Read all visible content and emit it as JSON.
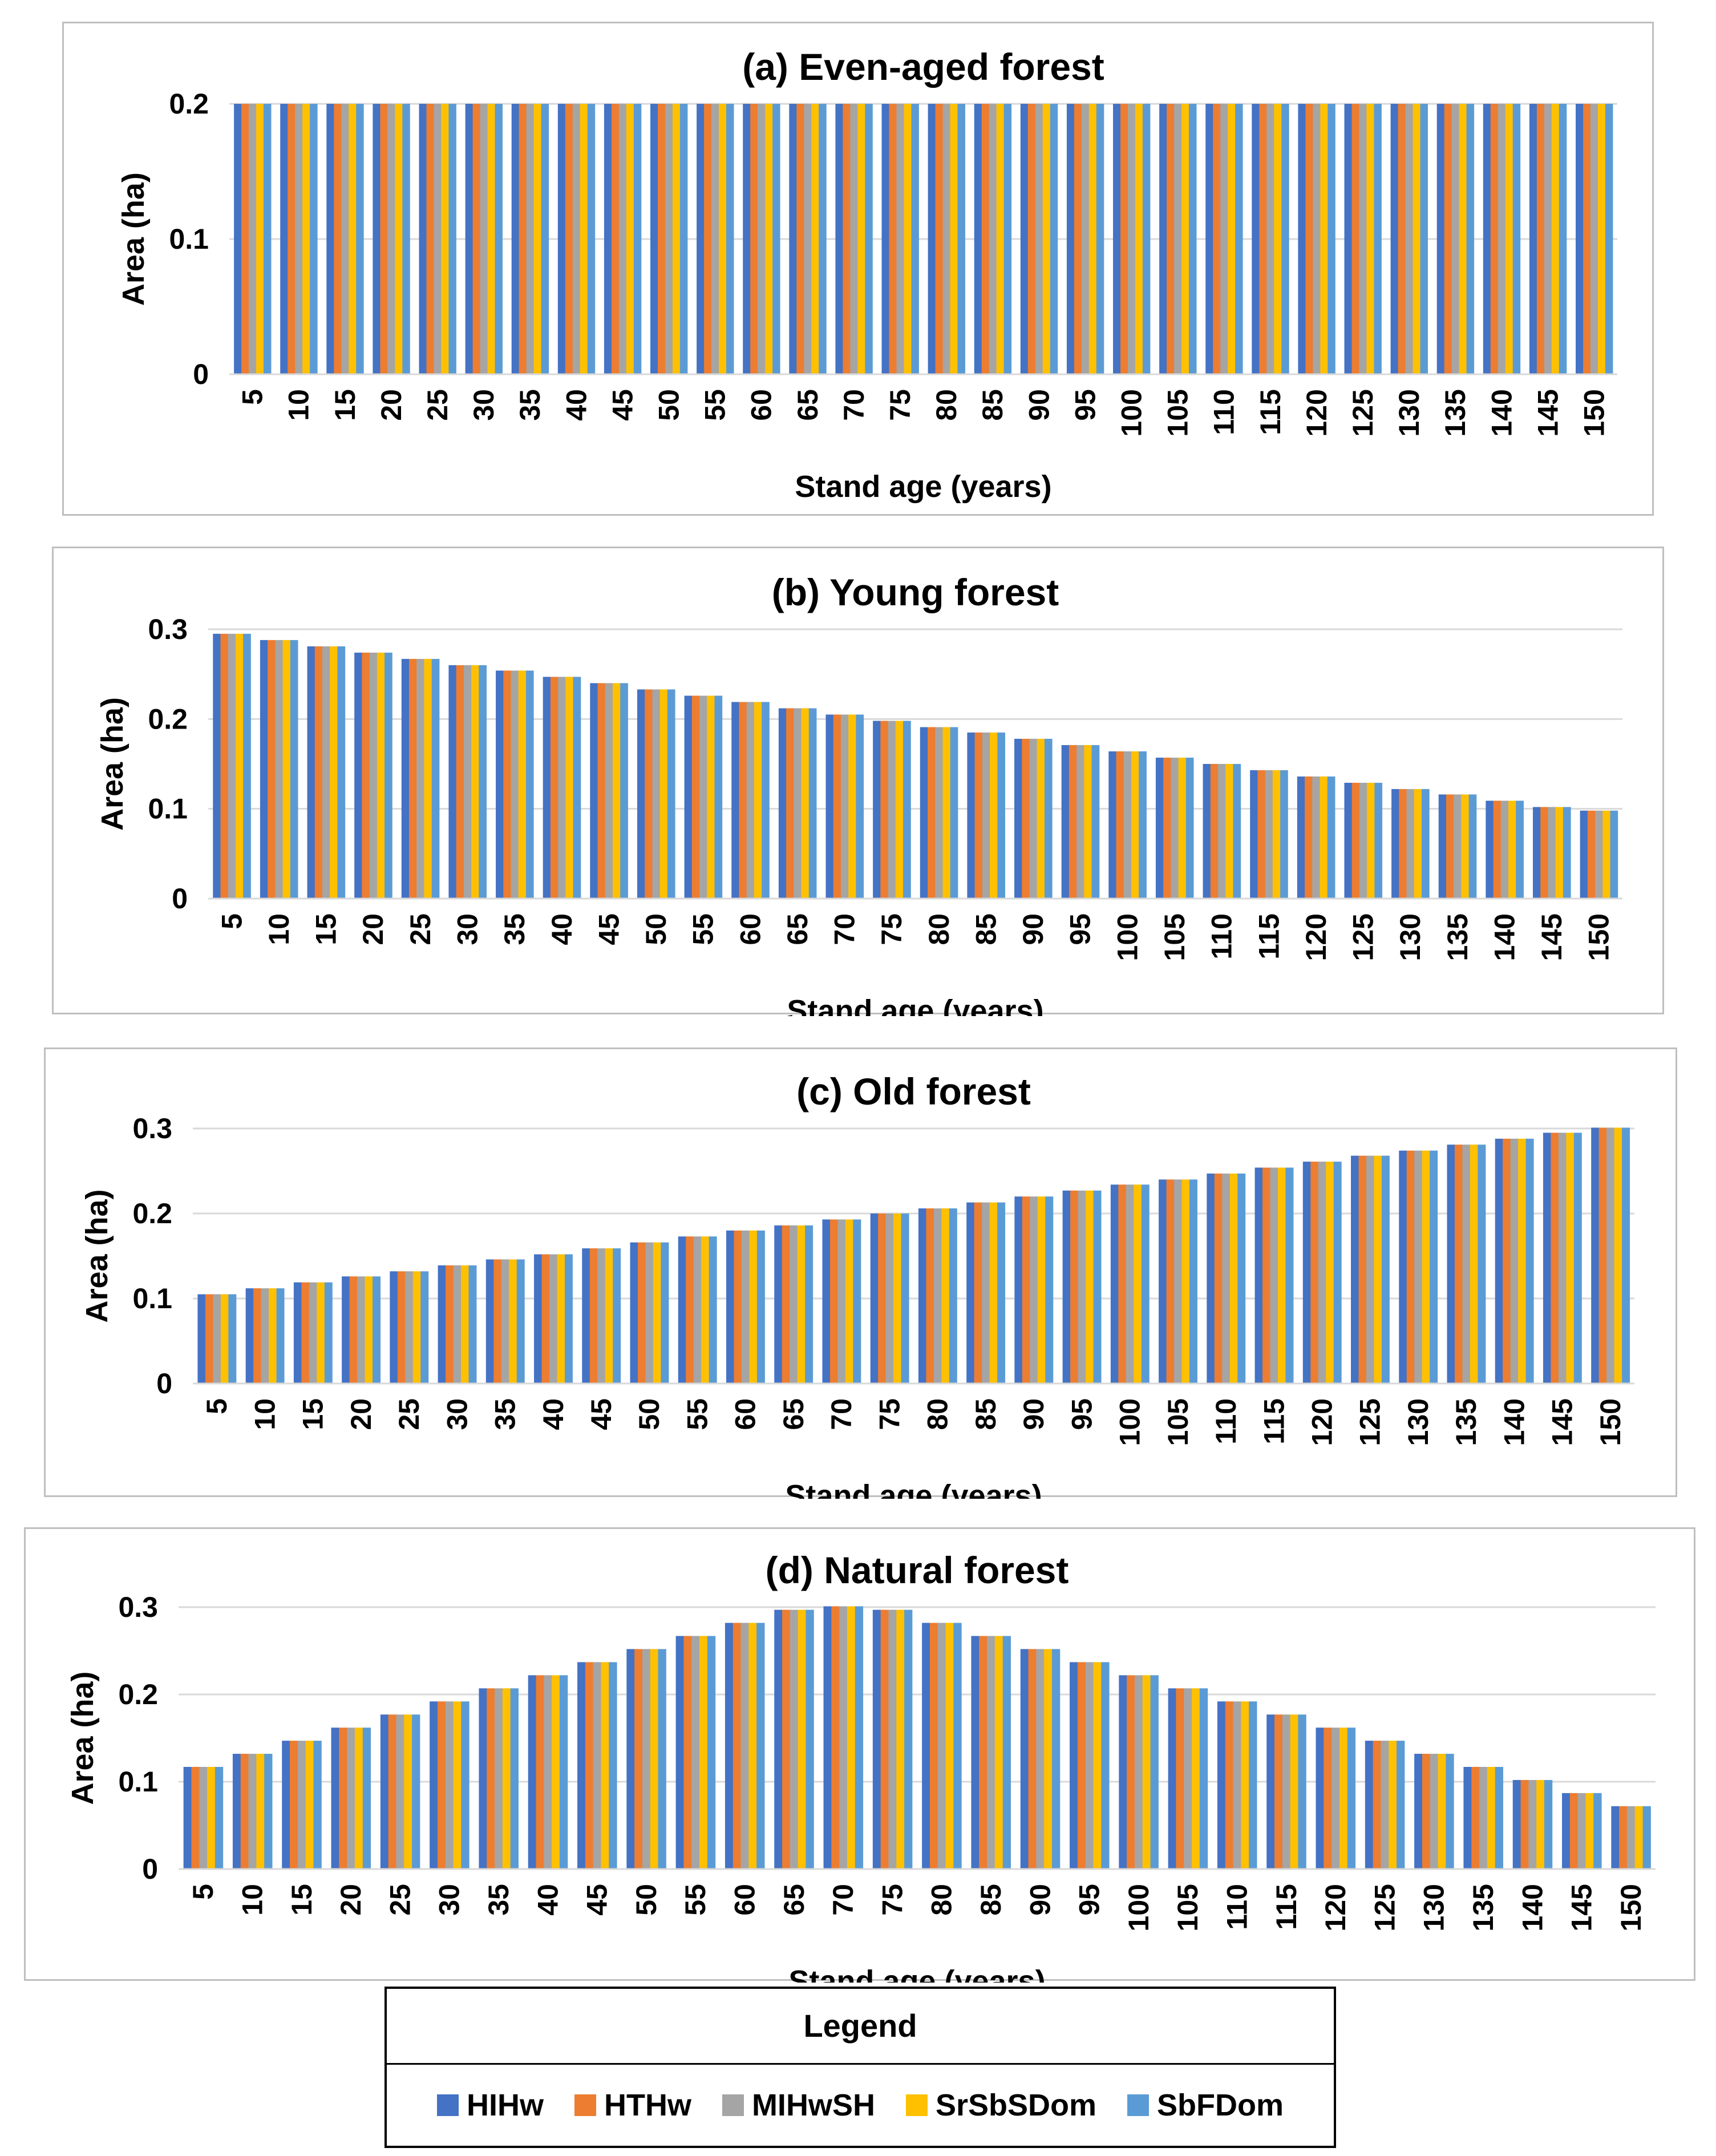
{
  "colors": {
    "HIHw": "#4472C4",
    "HTHw": "#ED7D31",
    "MIHwSH": "#A5A5A5",
    "SrSbSDom": "#FFC000",
    "SbFDom": "#5B9BD5",
    "gridline": "#d9d9d9"
  },
  "legend": {
    "title": "Legend",
    "items": [
      {
        "name": "HIHw",
        "color": "#4472C4"
      },
      {
        "name": "HTHw",
        "color": "#ED7D31"
      },
      {
        "name": "MIHwSH",
        "color": "#A5A5A5"
      },
      {
        "name": "SrSbSDom",
        "color": "#FFC000"
      },
      {
        "name": "SbFDom",
        "color": "#5B9BD5"
      }
    ]
  },
  "chart_data": [
    {
      "id": "even",
      "type": "bar",
      "title": "(a) Even-aged forest",
      "xlabel": "Stand age (years)",
      "ylabel": "Area (ha)",
      "ylim": [
        0,
        0.2
      ],
      "yticks": [
        "0",
        "0.1",
        "0.2"
      ],
      "grid": true,
      "categories": [
        "5",
        "10",
        "15",
        "20",
        "25",
        "30",
        "35",
        "40",
        "45",
        "50",
        "55",
        "60",
        "65",
        "70",
        "75",
        "80",
        "85",
        "90",
        "95",
        "100",
        "105",
        "110",
        "115",
        "120",
        "125",
        "130",
        "135",
        "140",
        "145",
        "150"
      ],
      "values": [
        0.2,
        0.2,
        0.2,
        0.2,
        0.2,
        0.2,
        0.2,
        0.2,
        0.2,
        0.2,
        0.2,
        0.2,
        0.2,
        0.2,
        0.2,
        0.2,
        0.2,
        0.2,
        0.2,
        0.2,
        0.2,
        0.2,
        0.2,
        0.2,
        0.2,
        0.2,
        0.2,
        0.2,
        0.2,
        0.2
      ],
      "series_names": [
        "HIHw",
        "HTHw",
        "MIHwSH",
        "SrSbSDom",
        "SbFDom"
      ]
    },
    {
      "id": "young",
      "type": "bar",
      "title": "(b) Young forest",
      "xlabel": "Stand age (years)",
      "ylabel": "Area (ha)",
      "ylim": [
        0,
        0.3
      ],
      "yticks": [
        "0",
        "0.1",
        "0.2",
        "0.3"
      ],
      "grid": true,
      "categories": [
        "5",
        "10",
        "15",
        "20",
        "25",
        "30",
        "35",
        "40",
        "45",
        "50",
        "55",
        "60",
        "65",
        "70",
        "75",
        "80",
        "85",
        "90",
        "95",
        "100",
        "105",
        "110",
        "115",
        "120",
        "125",
        "130",
        "135",
        "140",
        "145",
        "150"
      ],
      "values": [
        0.295,
        0.288,
        0.281,
        0.274,
        0.267,
        0.26,
        0.254,
        0.247,
        0.24,
        0.233,
        0.226,
        0.219,
        0.212,
        0.205,
        0.198,
        0.191,
        0.185,
        0.178,
        0.171,
        0.164,
        0.157,
        0.15,
        0.143,
        0.136,
        0.129,
        0.122,
        0.116,
        0.109,
        0.102,
        0.098
      ],
      "series_names": [
        "HIHw",
        "HTHw",
        "MIHwSH",
        "SrSbSDom",
        "SbFDom"
      ]
    },
    {
      "id": "old",
      "type": "bar",
      "title": "(c) Old forest",
      "xlabel": "Stand age (years)",
      "ylabel": "Area (ha)",
      "ylim": [
        0,
        0.3
      ],
      "yticks": [
        "0",
        "0.1",
        "0.2",
        "0.3"
      ],
      "grid": true,
      "categories": [
        "5",
        "10",
        "15",
        "20",
        "25",
        "30",
        "35",
        "40",
        "45",
        "50",
        "55",
        "60",
        "65",
        "70",
        "75",
        "80",
        "85",
        "90",
        "95",
        "100",
        "105",
        "110",
        "115",
        "120",
        "125",
        "130",
        "135",
        "140",
        "145",
        "150"
      ],
      "values": [
        0.105,
        0.112,
        0.119,
        0.126,
        0.132,
        0.139,
        0.146,
        0.152,
        0.159,
        0.166,
        0.173,
        0.18,
        0.186,
        0.193,
        0.2,
        0.206,
        0.213,
        0.22,
        0.227,
        0.234,
        0.24,
        0.247,
        0.254,
        0.261,
        0.268,
        0.274,
        0.281,
        0.288,
        0.295,
        0.301
      ],
      "series_names": [
        "HIHw",
        "HTHw",
        "MIHwSH",
        "SrSbSDom",
        "SbFDom"
      ]
    },
    {
      "id": "natural",
      "type": "bar",
      "title": "(d) Natural forest",
      "xlabel": "Stand age (years)",
      "ylabel": "Area (ha)",
      "ylim": [
        0,
        0.3
      ],
      "yticks": [
        "0",
        "0.1",
        "0.2",
        "0.3"
      ],
      "grid": true,
      "categories": [
        "5",
        "10",
        "15",
        "20",
        "25",
        "30",
        "35",
        "40",
        "45",
        "50",
        "55",
        "60",
        "65",
        "70",
        "75",
        "80",
        "85",
        "90",
        "95",
        "100",
        "105",
        "110",
        "115",
        "120",
        "125",
        "130",
        "135",
        "140",
        "145",
        "150"
      ],
      "values": [
        0.117,
        0.132,
        0.147,
        0.162,
        0.177,
        0.192,
        0.207,
        0.222,
        0.237,
        0.252,
        0.267,
        0.282,
        0.297,
        0.301,
        0.297,
        0.282,
        0.267,
        0.252,
        0.237,
        0.222,
        0.207,
        0.192,
        0.177,
        0.162,
        0.147,
        0.132,
        0.117,
        0.102,
        0.087,
        0.072
      ],
      "series_names": [
        "HIHw",
        "HTHw",
        "MIHwSH",
        "SrSbSDom",
        "SbFDom"
      ]
    }
  ]
}
